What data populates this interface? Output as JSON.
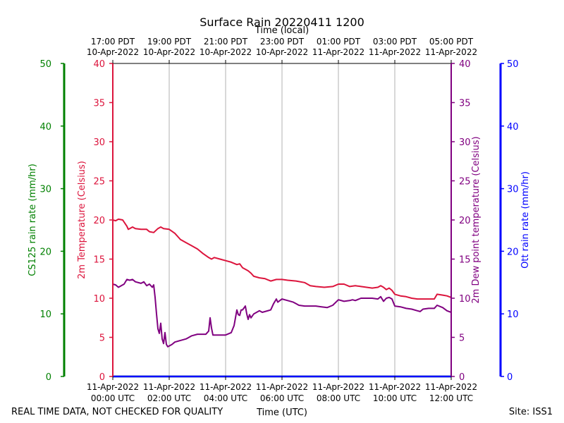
{
  "chart_data": {
    "type": "line",
    "title": "Surface Rain 20220411 1200",
    "top_axis_label": "Time (local)",
    "xlabel": "Time (UTC)",
    "x_range_hours": [
      0,
      12
    ],
    "bottom_ticks": [
      {
        "hour": 0,
        "line1": "11-Apr-2022",
        "line2": "00:00 UTC"
      },
      {
        "hour": 2,
        "line1": "11-Apr-2022",
        "line2": "02:00 UTC"
      },
      {
        "hour": 4,
        "line1": "11-Apr-2022",
        "line2": "04:00 UTC"
      },
      {
        "hour": 6,
        "line1": "11-Apr-2022",
        "line2": "06:00 UTC"
      },
      {
        "hour": 8,
        "line1": "11-Apr-2022",
        "line2": "08:00 UTC"
      },
      {
        "hour": 10,
        "line1": "11-Apr-2022",
        "line2": "10:00 UTC"
      },
      {
        "hour": 12,
        "line1": "11-Apr-2022",
        "line2": "12:00 UTC"
      }
    ],
    "top_ticks": [
      {
        "hour": 0,
        "line1": "17:00 PDT",
        "line2": "10-Apr-2022"
      },
      {
        "hour": 2,
        "line1": "19:00 PDT",
        "line2": "10-Apr-2022"
      },
      {
        "hour": 4,
        "line1": "21:00 PDT",
        "line2": "10-Apr-2022"
      },
      {
        "hour": 6,
        "line1": "23:00 PDT",
        "line2": "10-Apr-2022"
      },
      {
        "hour": 8,
        "line1": "01:00 PDT",
        "line2": "11-Apr-2022"
      },
      {
        "hour": 10,
        "line1": "03:00 PDT",
        "line2": "11-Apr-2022"
      },
      {
        "hour": 12,
        "line1": "05:00 PDT",
        "line2": "11-Apr-2022"
      }
    ],
    "axes": {
      "cs125": {
        "label": "CS125 rain rate (mm/hr)",
        "range": [
          0,
          50
        ],
        "ticks": [
          0,
          10,
          20,
          30,
          40,
          50
        ],
        "color": "#008000"
      },
      "temp": {
        "label": "2m Temperature (Celsius)",
        "range": [
          0,
          40
        ],
        "ticks": [
          0,
          5,
          10,
          15,
          20,
          25,
          30,
          35,
          40
        ],
        "color": "#dc143c"
      },
      "dew": {
        "label": "2m Dew point temperature (Celsius)",
        "range": [
          0,
          40
        ],
        "ticks": [
          0,
          5,
          10,
          15,
          20,
          25,
          30,
          35,
          40
        ],
        "color": "#800080"
      },
      "ott": {
        "label": "Ott rain rate (mm/hr)",
        "range": [
          0,
          50
        ],
        "ticks": [
          0,
          10,
          20,
          30,
          40,
          50
        ],
        "color": "#0000ff"
      }
    },
    "series": [
      {
        "name": "2m Temperature",
        "axis": "temp",
        "color": "#dc143c",
        "points": [
          [
            0,
            20
          ],
          [
            0.1,
            19.9
          ],
          [
            0.2,
            20.1
          ],
          [
            0.35,
            20
          ],
          [
            0.5,
            19.2
          ],
          [
            0.55,
            18.8
          ],
          [
            0.6,
            18.9
          ],
          [
            0.7,
            19.1
          ],
          [
            0.8,
            18.9
          ],
          [
            1,
            18.8
          ],
          [
            1.2,
            18.8
          ],
          [
            1.3,
            18.5
          ],
          [
            1.45,
            18.4
          ],
          [
            1.6,
            18.9
          ],
          [
            1.7,
            19.1
          ],
          [
            1.8,
            18.9
          ],
          [
            2,
            18.8
          ],
          [
            2.2,
            18.3
          ],
          [
            2.4,
            17.5
          ],
          [
            2.6,
            17.1
          ],
          [
            2.8,
            16.7
          ],
          [
            3,
            16.3
          ],
          [
            3.2,
            15.7
          ],
          [
            3.4,
            15.2
          ],
          [
            3.5,
            15
          ],
          [
            3.6,
            15.2
          ],
          [
            3.8,
            15
          ],
          [
            4,
            14.8
          ],
          [
            4.2,
            14.6
          ],
          [
            4.4,
            14.3
          ],
          [
            4.5,
            14.4
          ],
          [
            4.6,
            13.9
          ],
          [
            4.8,
            13.5
          ],
          [
            4.9,
            13.2
          ],
          [
            5,
            12.8
          ],
          [
            5.2,
            12.6
          ],
          [
            5.4,
            12.5
          ],
          [
            5.6,
            12.2
          ],
          [
            5.8,
            12.4
          ],
          [
            6,
            12.4
          ],
          [
            6.2,
            12.3
          ],
          [
            6.5,
            12.2
          ],
          [
            6.8,
            12
          ],
          [
            7,
            11.6
          ],
          [
            7.2,
            11.5
          ],
          [
            7.5,
            11.4
          ],
          [
            7.8,
            11.5
          ],
          [
            8,
            11.8
          ],
          [
            8.2,
            11.8
          ],
          [
            8.4,
            11.5
          ],
          [
            8.6,
            11.6
          ],
          [
            8.8,
            11.5
          ],
          [
            9,
            11.4
          ],
          [
            9.2,
            11.3
          ],
          [
            9.4,
            11.4
          ],
          [
            9.5,
            11.6
          ],
          [
            9.6,
            11.4
          ],
          [
            9.7,
            11.1
          ],
          [
            9.8,
            11.3
          ],
          [
            9.9,
            11
          ],
          [
            10,
            10.5
          ],
          [
            10.2,
            10.3
          ],
          [
            10.4,
            10.2
          ],
          [
            10.6,
            10
          ],
          [
            10.8,
            9.9
          ],
          [
            11,
            9.9
          ],
          [
            11.2,
            9.9
          ],
          [
            11.4,
            9.9
          ],
          [
            11.5,
            10.5
          ],
          [
            11.7,
            10.4
          ],
          [
            11.85,
            10.3
          ],
          [
            12,
            10.1
          ]
        ]
      },
      {
        "name": "2m Dew point temperature",
        "axis": "dew",
        "color": "#800080",
        "points": [
          [
            0,
            11.8
          ],
          [
            0.1,
            11.7
          ],
          [
            0.2,
            11.4
          ],
          [
            0.3,
            11.6
          ],
          [
            0.4,
            11.8
          ],
          [
            0.5,
            12.4
          ],
          [
            0.6,
            12.3
          ],
          [
            0.7,
            12.4
          ],
          [
            0.8,
            12.1
          ],
          [
            1,
            11.9
          ],
          [
            1.1,
            12.1
          ],
          [
            1.2,
            11.6
          ],
          [
            1.3,
            11.8
          ],
          [
            1.4,
            11.4
          ],
          [
            1.45,
            11.7
          ],
          [
            1.5,
            10.1
          ],
          [
            1.55,
            8
          ],
          [
            1.6,
            6.1
          ],
          [
            1.65,
            5.5
          ],
          [
            1.7,
            6.8
          ],
          [
            1.75,
            4.8
          ],
          [
            1.8,
            4.2
          ],
          [
            1.85,
            5.6
          ],
          [
            1.9,
            4.1
          ],
          [
            1.95,
            3.8
          ],
          [
            2,
            3.9
          ],
          [
            2.1,
            4.1
          ],
          [
            2.2,
            4.4
          ],
          [
            2.4,
            4.6
          ],
          [
            2.6,
            4.8
          ],
          [
            2.8,
            5.2
          ],
          [
            3,
            5.4
          ],
          [
            3.3,
            5.4
          ],
          [
            3.4,
            5.8
          ],
          [
            3.45,
            7.5
          ],
          [
            3.5,
            6.2
          ],
          [
            3.55,
            5.3
          ],
          [
            3.8,
            5.3
          ],
          [
            4,
            5.3
          ],
          [
            4.2,
            5.6
          ],
          [
            4.3,
            6.5
          ],
          [
            4.4,
            8.5
          ],
          [
            4.45,
            7.9
          ],
          [
            4.5,
            7.8
          ],
          [
            4.55,
            8.5
          ],
          [
            4.6,
            8.5
          ],
          [
            4.7,
            9
          ],
          [
            4.75,
            8
          ],
          [
            4.8,
            7.3
          ],
          [
            4.85,
            7.9
          ],
          [
            4.9,
            7.5
          ],
          [
            5,
            8
          ],
          [
            5.2,
            8.4
          ],
          [
            5.3,
            8.2
          ],
          [
            5.4,
            8.3
          ],
          [
            5.6,
            8.5
          ],
          [
            5.7,
            9.3
          ],
          [
            5.8,
            9.9
          ],
          [
            5.85,
            9.5
          ],
          [
            6,
            9.9
          ],
          [
            6.2,
            9.7
          ],
          [
            6.4,
            9.5
          ],
          [
            6.5,
            9.3
          ],
          [
            6.6,
            9.1
          ],
          [
            6.8,
            9
          ],
          [
            7,
            9
          ],
          [
            7.2,
            9
          ],
          [
            7.4,
            8.9
          ],
          [
            7.6,
            8.8
          ],
          [
            7.8,
            9.1
          ],
          [
            8,
            9.8
          ],
          [
            8.2,
            9.6
          ],
          [
            8.4,
            9.7
          ],
          [
            8.5,
            9.8
          ],
          [
            8.6,
            9.7
          ],
          [
            8.8,
            10
          ],
          [
            9,
            10
          ],
          [
            9.2,
            10
          ],
          [
            9.4,
            9.9
          ],
          [
            9.5,
            10.2
          ],
          [
            9.6,
            9.6
          ],
          [
            9.7,
            10
          ],
          [
            9.8,
            10.1
          ],
          [
            9.9,
            9.9
          ],
          [
            10,
            9
          ],
          [
            10.2,
            8.9
          ],
          [
            10.4,
            8.7
          ],
          [
            10.6,
            8.6
          ],
          [
            10.8,
            8.4
          ],
          [
            10.9,
            8.3
          ],
          [
            11,
            8.6
          ],
          [
            11.2,
            8.7
          ],
          [
            11.4,
            8.7
          ],
          [
            11.5,
            9.1
          ],
          [
            11.7,
            8.8
          ],
          [
            11.85,
            8.4
          ],
          [
            12,
            8.2
          ]
        ]
      },
      {
        "name": "CS125 rain rate",
        "axis": "cs125",
        "color": "#008000",
        "points": [
          [
            0,
            0
          ],
          [
            12,
            0
          ]
        ]
      },
      {
        "name": "Ott rain rate",
        "axis": "ott",
        "color": "#0000ff",
        "points": [
          [
            0,
            0
          ],
          [
            12,
            0
          ]
        ]
      }
    ]
  },
  "footer": {
    "left_note": "REAL TIME DATA, NOT CHECKED FOR QUALITY",
    "site": "Site: ISS1"
  }
}
